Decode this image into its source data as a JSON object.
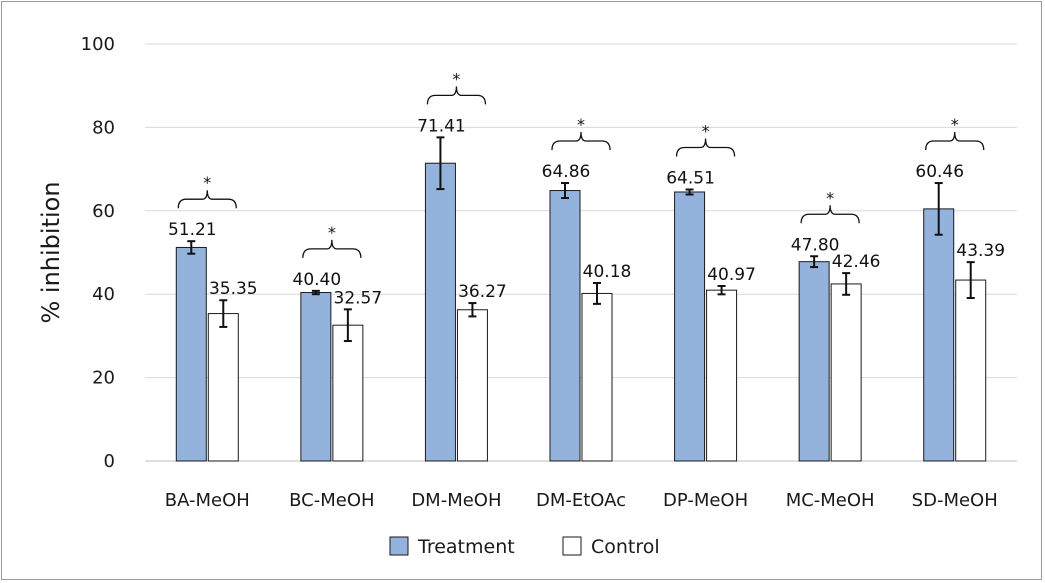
{
  "chart_data": {
    "type": "bar",
    "title": "",
    "xlabel": "",
    "ylabel": "% inhibition",
    "ylim": [
      0,
      100
    ],
    "yticks": [
      "0",
      "20",
      "40",
      "60",
      "80",
      "100"
    ],
    "grid": true,
    "legend_position": "bottom",
    "categories": [
      "BA-MeOH",
      "BC-MeOH",
      "DM-MeOH",
      "DM-EtOAc",
      "DP-MeOH",
      "MC-MeOH",
      "SD-MeOH"
    ],
    "series": [
      {
        "name": "Treatment",
        "color": "#94b3dc",
        "values": [
          51.21,
          40.4,
          71.41,
          64.86,
          64.51,
          47.8,
          60.46
        ],
        "labels": [
          "51.21",
          "40.40",
          "71.41",
          "64.86",
          "64.51",
          "47.80",
          "60.46"
        ],
        "errors": [
          1.5,
          0.4,
          6.2,
          1.8,
          0.6,
          1.3,
          6.2
        ]
      },
      {
        "name": "Control",
        "color": "#ffffff",
        "values": [
          35.35,
          32.57,
          36.27,
          40.18,
          40.97,
          42.46,
          43.39
        ],
        "labels": [
          "35.35",
          "32.57",
          "36.27",
          "40.18",
          "40.97",
          "42.46",
          "43.39"
        ],
        "errors": [
          3.2,
          3.8,
          1.6,
          2.5,
          1.0,
          2.6,
          4.3
        ]
      }
    ],
    "significance": [
      "*",
      "*",
      "*",
      "*",
      "*",
      "*",
      "*"
    ]
  }
}
